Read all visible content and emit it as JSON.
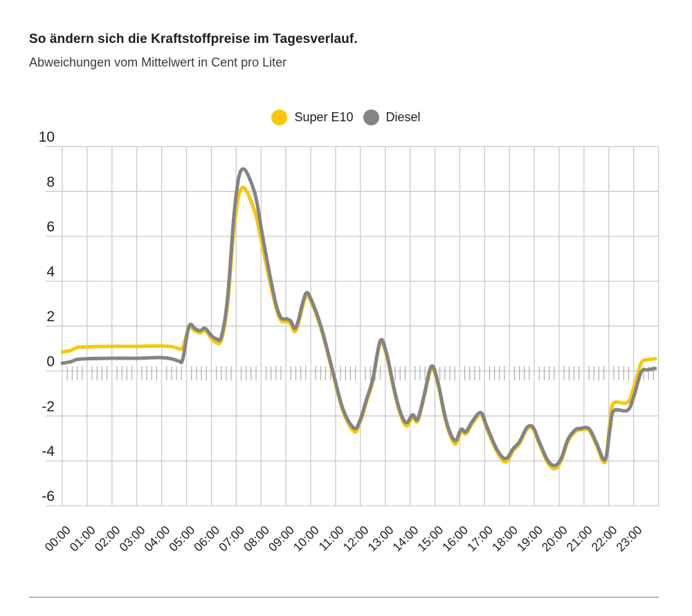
{
  "header": {
    "title": "So ändern sich die Kraftstoffpreise im Tagesverlauf.",
    "subtitle": "Abweichungen vom Mittelwert in Cent pro Liter"
  },
  "legend": {
    "items": [
      {
        "label": "Super E10",
        "color": "#F8C806"
      },
      {
        "label": "Diesel",
        "color": "#848484"
      }
    ]
  },
  "style": {
    "grid_color": "#c9c9c9",
    "minor_tick_color": "#adadad",
    "axis_label_color": "#1d1d1b",
    "divider_color": "#b5b5b5",
    "background": "#ffffff"
  },
  "chart_data": {
    "type": "line",
    "title": "So ändern sich die Kraftstoffpreise im Tagesverlauf.",
    "subtitle": "Abweichungen vom Mittelwert in Cent pro Liter",
    "xlabel": "",
    "ylabel": "Abweichung vom Mittelwert (Cent pro Liter)",
    "grid": true,
    "legend_position": "top-center",
    "ylim": [
      -6,
      10
    ],
    "y_ticks": [
      10,
      8,
      6,
      4,
      2,
      0,
      -2,
      -4,
      -6
    ],
    "xlim_hours": [
      0,
      24
    ],
    "x_tick_labels": [
      "00:00",
      "01:00",
      "02:00",
      "03:00",
      "04:00",
      "05:00",
      "06:00",
      "07:00",
      "08:00",
      "09:00",
      "10:00",
      "11:00",
      "12:00",
      "13:00",
      "14:00",
      "15:00",
      "16:00",
      "17:00",
      "18:00",
      "19:00",
      "20:00",
      "21:00",
      "22:00",
      "23:00"
    ],
    "x_minor_tick_minutes": 12,
    "x_hours": [
      0.0,
      0.35,
      0.6,
      1.0,
      2.0,
      3.0,
      4.0,
      4.45,
      4.7,
      4.85,
      5.1,
      5.35,
      5.55,
      5.75,
      6.0,
      6.2,
      6.4,
      6.65,
      6.9,
      7.1,
      7.3,
      7.55,
      7.8,
      8.05,
      8.35,
      8.6,
      8.8,
      9.05,
      9.2,
      9.35,
      9.5,
      9.8,
      10.05,
      10.45,
      10.9,
      11.3,
      11.75,
      12.0,
      12.25,
      12.5,
      12.8,
      13.05,
      13.35,
      13.6,
      13.85,
      14.1,
      14.3,
      14.55,
      14.85,
      15.1,
      15.45,
      15.8,
      16.05,
      16.25,
      16.5,
      16.85,
      17.1,
      17.5,
      17.85,
      18.15,
      18.4,
      18.7,
      18.95,
      19.2,
      19.55,
      19.85,
      20.1,
      20.35,
      20.65,
      20.85,
      21.2,
      21.5,
      21.85,
      22.05,
      22.2,
      22.75,
      23.0,
      23.3,
      23.55,
      23.87
    ],
    "series": [
      {
        "name": "Super E10",
        "color": "#F8C806",
        "values": [
          0.85,
          0.92,
          1.05,
          1.08,
          1.1,
          1.1,
          1.12,
          1.08,
          1.0,
          1.06,
          1.9,
          1.78,
          1.7,
          1.8,
          1.45,
          1.27,
          1.38,
          2.9,
          6.2,
          7.8,
          8.18,
          7.7,
          6.9,
          5.6,
          4.0,
          2.85,
          2.25,
          2.2,
          2.08,
          1.75,
          2.1,
          3.3,
          3.0,
          1.75,
          -0.15,
          -1.8,
          -2.7,
          -2.25,
          -1.35,
          -0.45,
          1.25,
          0.7,
          -0.85,
          -1.9,
          -2.45,
          -2.05,
          -2.25,
          -1.25,
          0.08,
          -0.5,
          -2.3,
          -3.25,
          -2.7,
          -2.8,
          -2.35,
          -1.95,
          -2.6,
          -3.6,
          -4.05,
          -3.55,
          -3.25,
          -2.6,
          -2.57,
          -3.25,
          -4.1,
          -4.35,
          -3.95,
          -3.15,
          -2.7,
          -2.63,
          -2.63,
          -3.3,
          -4.05,
          -2.2,
          -1.42,
          -1.4,
          -0.75,
          0.35,
          0.5,
          0.55
        ]
      },
      {
        "name": "Diesel",
        "color": "#848484",
        "values": [
          0.35,
          0.42,
          0.52,
          0.55,
          0.57,
          0.57,
          0.6,
          0.53,
          0.44,
          0.52,
          2.0,
          1.88,
          1.8,
          1.9,
          1.58,
          1.44,
          1.52,
          3.2,
          6.8,
          8.6,
          9.0,
          8.55,
          7.7,
          6.1,
          4.3,
          3.0,
          2.38,
          2.32,
          2.22,
          1.9,
          2.25,
          3.45,
          3.1,
          1.85,
          -0.05,
          -1.7,
          -2.55,
          -2.15,
          -1.25,
          -0.35,
          1.35,
          0.8,
          -0.75,
          -1.8,
          -2.3,
          -1.95,
          -2.15,
          -1.15,
          0.2,
          -0.4,
          -2.2,
          -3.1,
          -2.6,
          -2.7,
          -2.25,
          -1.85,
          -2.5,
          -3.5,
          -3.9,
          -3.45,
          -3.15,
          -2.52,
          -2.5,
          -3.15,
          -4.0,
          -4.2,
          -3.85,
          -3.05,
          -2.62,
          -2.56,
          -2.56,
          -3.2,
          -3.95,
          -2.55,
          -1.77,
          -1.75,
          -1.15,
          -0.05,
          0.05,
          0.12
        ]
      }
    ]
  }
}
